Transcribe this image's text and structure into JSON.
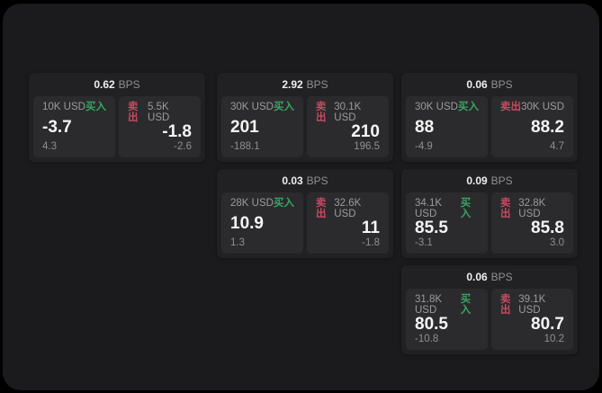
{
  "labels": {
    "bps_unit": "BPS",
    "buy": "买入",
    "sell": "卖出"
  },
  "colors": {
    "buy_green": "#3aa45e",
    "sell_red": "#c74a62",
    "panel_bg": "#1b1b1d",
    "card_bg": "#212124",
    "tile_bg": "#2b2b2e"
  },
  "cards": [
    {
      "bps": "0.62",
      "buy": {
        "amount": "10K USD",
        "price": "-3.7",
        "delta": "4.3"
      },
      "sell": {
        "amount": "5.5K USD",
        "price": "-1.8",
        "delta": "-2.6"
      }
    },
    {
      "bps": "2.92",
      "buy": {
        "amount": "30K USD",
        "price": "201",
        "delta": "-188.1"
      },
      "sell": {
        "amount": "30.1K USD",
        "price": "210",
        "delta": "196.5"
      }
    },
    {
      "bps": "0.06",
      "buy": {
        "amount": "30K USD",
        "price": "88",
        "delta": "-4.9"
      },
      "sell": {
        "amount": "30K USD",
        "price": "88.2",
        "delta": "4.7"
      }
    },
    {
      "bps": "0.03",
      "buy": {
        "amount": "28K USD",
        "price": "10.9",
        "delta": "1.3"
      },
      "sell": {
        "amount": "32.6K USD",
        "price": "11",
        "delta": "-1.8"
      }
    },
    {
      "bps": "0.09",
      "buy": {
        "amount": "34.1K USD",
        "price": "85.5",
        "delta": "-3.1"
      },
      "sell": {
        "amount": "32.8K USD",
        "price": "85.8",
        "delta": "3.0"
      }
    },
    {
      "bps": "0.06",
      "buy": {
        "amount": "31.8K USD",
        "price": "80.5",
        "delta": "-10.8"
      },
      "sell": {
        "amount": "39.1K USD",
        "price": "80.7",
        "delta": "10.2"
      }
    }
  ]
}
